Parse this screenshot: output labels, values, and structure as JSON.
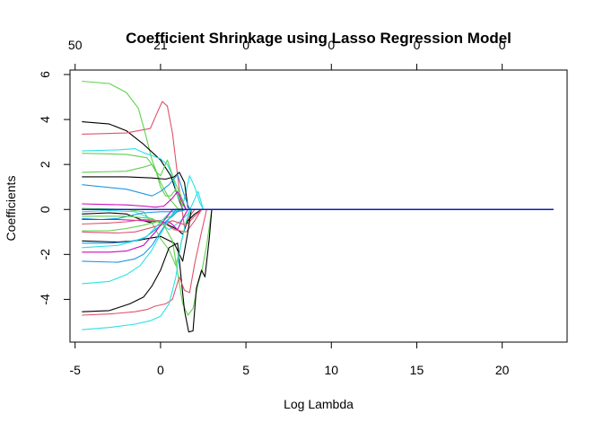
{
  "chart_data": {
    "type": "line",
    "title": "Coefficient Shrinkage using Lasso Regression Model",
    "xlabel": "Log Lambda",
    "ylabel": "Coefficients",
    "xlim": [
      -5.3,
      23.8
    ],
    "ylim": [
      -5.9,
      6.2
    ],
    "x_ticks": [
      -5,
      0,
      5,
      10,
      15,
      20
    ],
    "y_ticks": [
      -4,
      -2,
      0,
      2,
      4,
      6
    ],
    "top_axis": {
      "x": [
        -5,
        0,
        5,
        10,
        15,
        20
      ],
      "labels": [
        "50",
        "21",
        "0",
        "0",
        "0",
        "0"
      ]
    },
    "grid": false,
    "legend": "none",
    "x_end": 23,
    "colors": [
      "#000000",
      "#df536b",
      "#61d04f",
      "#2297e6",
      "#28e2e5",
      "#cd0bbc"
    ],
    "series": [
      {
        "color": "#61d04f",
        "values": [
          [
            -4.6,
            5.7
          ],
          [
            -3.0,
            5.6
          ],
          [
            -2.0,
            5.2
          ],
          [
            -1.3,
            4.5
          ],
          [
            -0.9,
            3.4
          ],
          [
            -0.5,
            2.2
          ],
          [
            0.0,
            1.2
          ],
          [
            0.5,
            0.5
          ],
          [
            1.0,
            0.05
          ],
          [
            1.3,
            0
          ]
        ]
      },
      {
        "color": "#000000",
        "values": [
          [
            -4.6,
            3.9
          ],
          [
            -3.0,
            3.8
          ],
          [
            -2.0,
            3.5
          ],
          [
            -1.0,
            2.9
          ],
          [
            0.0,
            2.2
          ],
          [
            0.6,
            1.5
          ],
          [
            1.0,
            0.6
          ],
          [
            1.3,
            0
          ]
        ]
      },
      {
        "color": "#df536b",
        "values": [
          [
            -4.6,
            3.35
          ],
          [
            -2.0,
            3.4
          ],
          [
            -0.6,
            3.6
          ],
          [
            -0.2,
            4.3
          ],
          [
            0.1,
            4.8
          ],
          [
            0.4,
            4.6
          ],
          [
            0.7,
            3.4
          ],
          [
            1.0,
            1.5
          ],
          [
            1.2,
            0.3
          ],
          [
            1.4,
            -0.8
          ],
          [
            1.7,
            -0.3
          ],
          [
            2.0,
            0
          ]
        ]
      },
      {
        "color": "#28e2e5",
        "values": [
          [
            -4.6,
            2.6
          ],
          [
            -2.5,
            2.65
          ],
          [
            -1.5,
            2.7
          ],
          [
            -0.9,
            2.5
          ],
          [
            -0.5,
            2.4
          ],
          [
            0.0,
            2.25
          ],
          [
            0.4,
            2.0
          ],
          [
            0.7,
            1.5
          ],
          [
            1.0,
            0.6
          ],
          [
            1.3,
            0.15
          ],
          [
            1.7,
            1.5
          ],
          [
            2.0,
            1.0
          ],
          [
            2.3,
            0.3
          ],
          [
            2.5,
            0
          ]
        ]
      },
      {
        "color": "#61d04f",
        "values": [
          [
            -4.6,
            2.5
          ],
          [
            -2.0,
            2.45
          ],
          [
            -0.8,
            2.3
          ],
          [
            -0.3,
            1.8
          ],
          [
            0.0,
            1.0
          ],
          [
            0.3,
            0.6
          ],
          [
            0.6,
            0.6
          ],
          [
            0.9,
            0.9
          ],
          [
            1.2,
            0.3
          ],
          [
            1.5,
            0
          ]
        ]
      },
      {
        "color": "#61d04f",
        "values": [
          [
            -4.6,
            1.65
          ],
          [
            -2.0,
            1.7
          ],
          [
            -0.9,
            1.9
          ],
          [
            -0.5,
            2.0
          ],
          [
            -0.3,
            1.7
          ],
          [
            0.0,
            1.5
          ],
          [
            0.4,
            2.2
          ],
          [
            0.8,
            1.3
          ],
          [
            1.2,
            0.6
          ],
          [
            1.5,
            0
          ]
        ]
      },
      {
        "color": "#000000",
        "values": [
          [
            -4.6,
            1.45
          ],
          [
            -2.0,
            1.45
          ],
          [
            -0.5,
            1.4
          ],
          [
            0.3,
            1.35
          ],
          [
            0.8,
            1.45
          ],
          [
            1.1,
            1.65
          ],
          [
            1.4,
            1.2
          ],
          [
            1.6,
            0.1
          ],
          [
            1.8,
            0
          ]
        ]
      },
      {
        "color": "#2297e6",
        "values": [
          [
            -4.6,
            1.1
          ],
          [
            -2.0,
            0.9
          ],
          [
            -0.5,
            0.6
          ],
          [
            0.0,
            0.8
          ],
          [
            0.5,
            1.1
          ],
          [
            1.0,
            1.55
          ],
          [
            1.4,
            0.6
          ],
          [
            1.7,
            0
          ]
        ]
      },
      {
        "color": "#cd0bbc",
        "values": [
          [
            -4.6,
            0.25
          ],
          [
            -2.0,
            0.2
          ],
          [
            -1.0,
            0.15
          ],
          [
            -0.3,
            0.1
          ],
          [
            0.2,
            0.15
          ],
          [
            0.7,
            0.5
          ],
          [
            1.0,
            0.8
          ],
          [
            1.3,
            0.3
          ],
          [
            1.5,
            0
          ]
        ]
      },
      {
        "color": "#61d04f",
        "values": [
          [
            -4.6,
            0.05
          ],
          [
            -2.0,
            0.0
          ],
          [
            -1.0,
            -0.1
          ],
          [
            -0.5,
            -0.6
          ],
          [
            0.0,
            -1.3
          ],
          [
            0.5,
            -1.8
          ],
          [
            0.9,
            -2.5
          ],
          [
            1.3,
            -1.2
          ],
          [
            1.6,
            -0.3
          ],
          [
            1.8,
            0
          ]
        ]
      },
      {
        "color": "#28e2e5",
        "values": [
          [
            -4.6,
            -0.1
          ],
          [
            -3.0,
            -0.05
          ],
          [
            -1.5,
            -0.1
          ],
          [
            0.0,
            -0.6
          ],
          [
            0.5,
            -0.9
          ],
          [
            1.2,
            -0.5
          ],
          [
            1.6,
            -0.2
          ],
          [
            2.2,
            0.8
          ],
          [
            2.5,
            0
          ]
        ]
      },
      {
        "color": "#000000",
        "values": [
          [
            -4.6,
            -0.2
          ],
          [
            -3.0,
            -0.15
          ],
          [
            -2.0,
            -0.2
          ],
          [
            -1.0,
            -0.5
          ],
          [
            -0.5,
            -0.6
          ],
          [
            0.0,
            -0.5
          ],
          [
            0.5,
            -0.7
          ],
          [
            1.0,
            -0.9
          ],
          [
            1.3,
            -1.1
          ],
          [
            1.6,
            -0.5
          ],
          [
            2.0,
            -0.2
          ],
          [
            2.4,
            0
          ]
        ]
      },
      {
        "color": "#2297e6",
        "values": [
          [
            -4.6,
            -0.4
          ],
          [
            -3.5,
            -0.45
          ],
          [
            -2.5,
            -0.4
          ],
          [
            -1.0,
            -0.15
          ],
          [
            0.0,
            -0.1
          ],
          [
            1.0,
            -0.1
          ],
          [
            1.5,
            0
          ]
        ]
      },
      {
        "color": "#cd0bbc",
        "values": [
          [
            -4.6,
            -0.45
          ],
          [
            -2.5,
            -0.45
          ],
          [
            -1.0,
            -0.5
          ],
          [
            0.0,
            -0.55
          ],
          [
            0.6,
            -0.6
          ],
          [
            1.0,
            -0.9
          ],
          [
            1.3,
            -0.4
          ],
          [
            1.6,
            0
          ]
        ]
      },
      {
        "color": "#df536b",
        "values": [
          [
            -4.6,
            -0.65
          ],
          [
            -3.0,
            -0.6
          ],
          [
            -2.0,
            -0.55
          ],
          [
            -1.0,
            -0.45
          ],
          [
            0.0,
            -0.5
          ],
          [
            0.8,
            -0.9
          ],
          [
            1.5,
            -1.0
          ],
          [
            2.0,
            -0.5
          ],
          [
            2.4,
            0
          ]
        ]
      },
      {
        "color": "#61d04f",
        "values": [
          [
            -4.6,
            -0.95
          ],
          [
            -3.0,
            -0.95
          ],
          [
            -2.0,
            -0.85
          ],
          [
            -1.0,
            -0.7
          ],
          [
            0.0,
            -0.5
          ],
          [
            0.6,
            -0.3
          ],
          [
            1.0,
            -0.1
          ],
          [
            1.2,
            0
          ]
        ]
      },
      {
        "color": "#df536b",
        "values": [
          [
            -4.6,
            -1.0
          ],
          [
            -2.5,
            -1.05
          ],
          [
            -1.5,
            -1.0
          ],
          [
            -0.5,
            -0.8
          ],
          [
            0.3,
            -0.6
          ],
          [
            0.7,
            -0.5
          ],
          [
            1.5,
            -0.7
          ],
          [
            2.0,
            -0.3
          ],
          [
            2.4,
            0
          ]
        ]
      },
      {
        "color": "#000000",
        "values": [
          [
            -4.6,
            -1.4
          ],
          [
            -2.5,
            -1.45
          ],
          [
            -1.5,
            -1.4
          ],
          [
            -0.8,
            -1.3
          ],
          [
            0.0,
            -1.2
          ],
          [
            0.8,
            -1.5
          ],
          [
            1.3,
            -2.3
          ],
          [
            1.6,
            -1.0
          ],
          [
            1.8,
            0
          ]
        ]
      },
      {
        "color": "#2297e6",
        "values": [
          [
            -4.6,
            -1.5
          ],
          [
            -3.0,
            -1.5
          ],
          [
            -2.0,
            -1.45
          ],
          [
            -1.0,
            -1.3
          ],
          [
            -0.3,
            -0.9
          ],
          [
            0.2,
            -0.6
          ],
          [
            0.7,
            -0.3
          ],
          [
            1.1,
            0
          ]
        ]
      },
      {
        "color": "#28e2e5",
        "values": [
          [
            -4.6,
            -1.7
          ],
          [
            -2.5,
            -1.6
          ],
          [
            -1.5,
            -1.4
          ],
          [
            -0.8,
            -1.2
          ],
          [
            -0.3,
            -0.8
          ],
          [
            0.2,
            -0.4
          ],
          [
            0.6,
            -0.1
          ],
          [
            0.8,
            0
          ]
        ]
      },
      {
        "color": "#cd0bbc",
        "values": [
          [
            -4.6,
            -1.9
          ],
          [
            -3.0,
            -1.9
          ],
          [
            -2.0,
            -1.85
          ],
          [
            -1.0,
            -1.6
          ],
          [
            -0.3,
            -1.0
          ],
          [
            0.3,
            -0.4
          ],
          [
            0.7,
            0
          ]
        ]
      },
      {
        "color": "#2297e6",
        "values": [
          [
            -4.6,
            -2.3
          ],
          [
            -2.5,
            -2.35
          ],
          [
            -1.5,
            -2.2
          ],
          [
            -1.0,
            -2.0
          ],
          [
            -0.5,
            -1.6
          ],
          [
            0.0,
            -1.0
          ],
          [
            0.5,
            -0.4
          ],
          [
            0.9,
            0
          ]
        ]
      },
      {
        "color": "#28e2e5",
        "values": [
          [
            -4.6,
            -3.3
          ],
          [
            -3.0,
            -3.2
          ],
          [
            -2.0,
            -2.9
          ],
          [
            -1.2,
            -2.5
          ],
          [
            -0.5,
            -1.8
          ],
          [
            0.0,
            -1.1
          ],
          [
            0.6,
            -0.3
          ],
          [
            1.0,
            0
          ]
        ]
      },
      {
        "color": "#61d04f",
        "values": [
          [
            -4.6,
            -0.3
          ],
          [
            -2.0,
            -0.3
          ],
          [
            -0.5,
            -0.4
          ],
          [
            0.2,
            -0.7
          ],
          [
            0.7,
            -1.4
          ],
          [
            1.0,
            -2.8
          ],
          [
            1.3,
            -4.2
          ],
          [
            1.6,
            -4.7
          ],
          [
            1.9,
            -4.4
          ],
          [
            2.2,
            -3.3
          ],
          [
            2.4,
            -2.8
          ],
          [
            2.7,
            -1.6
          ],
          [
            3.0,
            0
          ]
        ]
      },
      {
        "color": "#000000",
        "values": [
          [
            -4.6,
            -4.55
          ],
          [
            -3.0,
            -4.5
          ],
          [
            -1.8,
            -4.2
          ],
          [
            -1.0,
            -3.9
          ],
          [
            -0.5,
            -3.4
          ],
          [
            0.0,
            -2.7
          ],
          [
            0.5,
            -1.7
          ],
          [
            1.0,
            -1.5
          ],
          [
            1.4,
            -4.5
          ],
          [
            1.65,
            -5.45
          ],
          [
            1.9,
            -5.4
          ],
          [
            2.1,
            -3.5
          ],
          [
            2.4,
            -2.7
          ],
          [
            2.6,
            -3.0
          ],
          [
            2.85,
            -1.3
          ],
          [
            3.0,
            0
          ]
        ]
      },
      {
        "color": "#df536b",
        "values": [
          [
            -4.6,
            -4.7
          ],
          [
            -3.0,
            -4.65
          ],
          [
            -1.5,
            -4.55
          ],
          [
            -0.8,
            -4.45
          ],
          [
            -0.3,
            -4.3
          ],
          [
            0.3,
            -4.2
          ],
          [
            0.7,
            -4.0
          ],
          [
            1.1,
            -3.0
          ],
          [
            1.4,
            -3.6
          ],
          [
            1.7,
            -3.7
          ],
          [
            2.0,
            -2.4
          ],
          [
            2.4,
            -1.0
          ],
          [
            2.7,
            0
          ]
        ]
      },
      {
        "color": "#28e2e5",
        "values": [
          [
            -4.6,
            -5.35
          ],
          [
            -3.0,
            -5.25
          ],
          [
            -1.5,
            -5.1
          ],
          [
            -0.6,
            -4.95
          ],
          [
            0.0,
            -4.75
          ],
          [
            0.5,
            -4.2
          ],
          [
            0.9,
            -3.0
          ],
          [
            1.2,
            -1.5
          ],
          [
            1.5,
            -0.5
          ],
          [
            1.8,
            0
          ]
        ]
      }
    ]
  }
}
